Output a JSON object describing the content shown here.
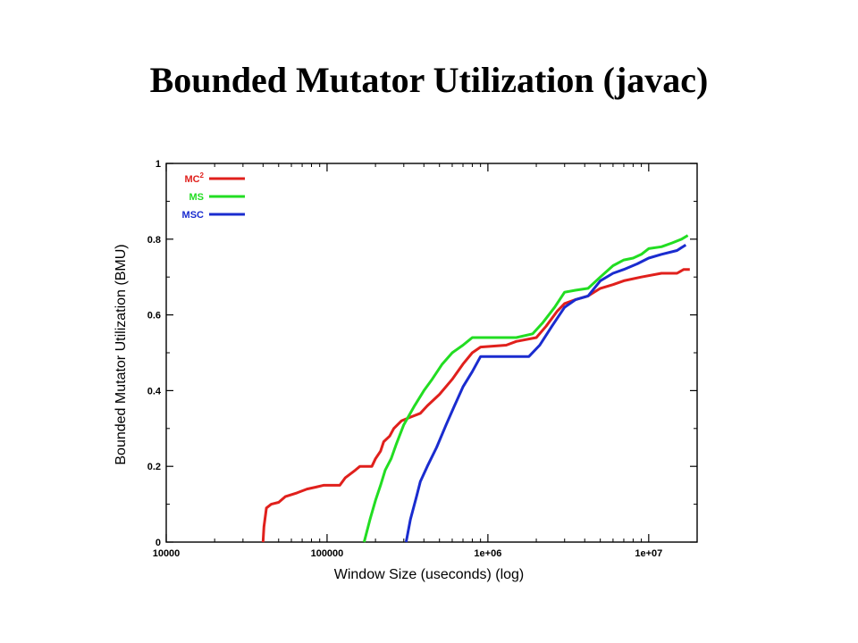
{
  "slide": {
    "title": "Bounded Mutator Utilization (javac)"
  },
  "chart_data": {
    "type": "line",
    "xlabel": "Window Size (useconds) (log)",
    "ylabel": "Bounded Mutator Utilization (BMU)",
    "xscale": "log",
    "xlim": [
      10000,
      20000000
    ],
    "ylim": [
      0,
      1
    ],
    "xticks": [
      {
        "value": 10000,
        "label": "10000"
      },
      {
        "value": 100000,
        "label": "100000"
      },
      {
        "value": 1000000,
        "label": "1e+06"
      },
      {
        "value": 10000000,
        "label": "1e+07"
      }
    ],
    "yticks": [
      {
        "value": 0,
        "label": "0"
      },
      {
        "value": 0.2,
        "label": "0.2"
      },
      {
        "value": 0.4,
        "label": "0.4"
      },
      {
        "value": 0.6,
        "label": "0.6"
      },
      {
        "value": 0.8,
        "label": "0.8"
      },
      {
        "value": 1,
        "label": "1"
      }
    ],
    "grid": false,
    "legend_position": "top-left",
    "series": [
      {
        "name": "MC",
        "name_superscript": "2",
        "color": "#e0201c",
        "points": [
          [
            40000,
            0
          ],
          [
            40500,
            0.04
          ],
          [
            42000,
            0.09
          ],
          [
            45000,
            0.1
          ],
          [
            50000,
            0.105
          ],
          [
            55000,
            0.12
          ],
          [
            65000,
            0.13
          ],
          [
            75000,
            0.14
          ],
          [
            85000,
            0.145
          ],
          [
            95000,
            0.15
          ],
          [
            120000,
            0.15
          ],
          [
            130000,
            0.17
          ],
          [
            150000,
            0.19
          ],
          [
            160000,
            0.2
          ],
          [
            190000,
            0.2
          ],
          [
            200000,
            0.22
          ],
          [
            215000,
            0.24
          ],
          [
            225000,
            0.265
          ],
          [
            245000,
            0.28
          ],
          [
            260000,
            0.3
          ],
          [
            290000,
            0.32
          ],
          [
            330000,
            0.33
          ],
          [
            380000,
            0.34
          ],
          [
            420000,
            0.36
          ],
          [
            500000,
            0.39
          ],
          [
            600000,
            0.43
          ],
          [
            700000,
            0.47
          ],
          [
            800000,
            0.5
          ],
          [
            900000,
            0.515
          ],
          [
            1300000,
            0.52
          ],
          [
            1500000,
            0.53
          ],
          [
            2000000,
            0.54
          ],
          [
            2300000,
            0.57
          ],
          [
            2700000,
            0.61
          ],
          [
            3000000,
            0.63
          ],
          [
            3500000,
            0.64
          ],
          [
            4200000,
            0.65
          ],
          [
            5000000,
            0.67
          ],
          [
            6000000,
            0.68
          ],
          [
            7000000,
            0.69
          ],
          [
            9000000,
            0.7
          ],
          [
            12000000,
            0.71
          ],
          [
            15000000,
            0.71
          ],
          [
            16500000,
            0.72
          ],
          [
            18000000,
            0.72
          ]
        ]
      },
      {
        "name": "MS",
        "color": "#22dd22",
        "points": [
          [
            170000,
            0
          ],
          [
            185000,
            0.06
          ],
          [
            200000,
            0.11
          ],
          [
            215000,
            0.15
          ],
          [
            230000,
            0.19
          ],
          [
            250000,
            0.22
          ],
          [
            270000,
            0.26
          ],
          [
            300000,
            0.31
          ],
          [
            350000,
            0.36
          ],
          [
            400000,
            0.4
          ],
          [
            450000,
            0.43
          ],
          [
            520000,
            0.47
          ],
          [
            600000,
            0.5
          ],
          [
            700000,
            0.52
          ],
          [
            800000,
            0.54
          ],
          [
            1000000,
            0.54
          ],
          [
            1500000,
            0.54
          ],
          [
            1900000,
            0.55
          ],
          [
            2200000,
            0.58
          ],
          [
            2600000,
            0.62
          ],
          [
            3000000,
            0.66
          ],
          [
            3500000,
            0.665
          ],
          [
            4200000,
            0.67
          ],
          [
            5000000,
            0.7
          ],
          [
            6000000,
            0.73
          ],
          [
            7000000,
            0.745
          ],
          [
            8000000,
            0.75
          ],
          [
            9000000,
            0.76
          ],
          [
            10000000,
            0.775
          ],
          [
            12000000,
            0.78
          ],
          [
            14000000,
            0.79
          ],
          [
            16000000,
            0.8
          ],
          [
            17500000,
            0.81
          ]
        ]
      },
      {
        "name": "MSC",
        "color": "#1a2ccf",
        "points": [
          [
            310000,
            0
          ],
          [
            330000,
            0.06
          ],
          [
            360000,
            0.12
          ],
          [
            380000,
            0.16
          ],
          [
            420000,
            0.2
          ],
          [
            480000,
            0.25
          ],
          [
            550000,
            0.31
          ],
          [
            620000,
            0.36
          ],
          [
            700000,
            0.41
          ],
          [
            800000,
            0.45
          ],
          [
            900000,
            0.49
          ],
          [
            1500000,
            0.49
          ],
          [
            1800000,
            0.49
          ],
          [
            2100000,
            0.52
          ],
          [
            2500000,
            0.57
          ],
          [
            3000000,
            0.62
          ],
          [
            3500000,
            0.64
          ],
          [
            4200000,
            0.65
          ],
          [
            5000000,
            0.69
          ],
          [
            6000000,
            0.71
          ],
          [
            7000000,
            0.72
          ],
          [
            8500000,
            0.735
          ],
          [
            10000000,
            0.75
          ],
          [
            12000000,
            0.76
          ],
          [
            15000000,
            0.77
          ],
          [
            17000000,
            0.785
          ]
        ]
      }
    ]
  }
}
